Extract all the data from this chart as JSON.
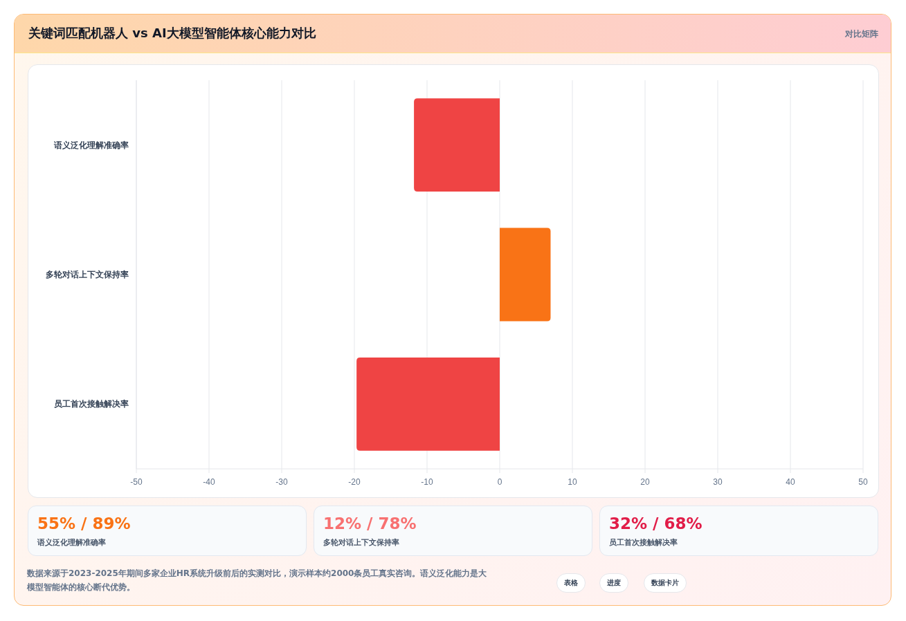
{
  "chart_data": {
    "type": "bar",
    "orientation": "horizontal",
    "title": "关键词匹配机器人 vs AI大模型智能体核心能力对比",
    "categories": [
      "语义泛化理解准确率",
      "多轮对话上下文保持率",
      "员工首次接触解决率"
    ],
    "values": [
      -11.8,
      7.0,
      -19.7
    ],
    "colors": [
      "#ef4444",
      "#f97316",
      "#ef4444"
    ],
    "xlim": [
      -50,
      50
    ],
    "xticks": [
      -50,
      -40,
      -30,
      -20,
      -10,
      0,
      10,
      20,
      30,
      40,
      50
    ],
    "grid": "x",
    "annotations": [
      "对比矩阵",
      "55% / 89%",
      "语义泛化理解准确率",
      "12% / 78%",
      "多轮对话上下文保持率",
      "32% / 68%",
      "员工首次接触解决率",
      "数据来源于2023-2025年期间多家企业HR系统升级前后的实测对比，演示样本约2000条员工真实咨询。语义泛化能力是大模型智能体的核心断代优势。",
      "表格",
      "进度",
      "数据卡片"
    ]
  }
}
